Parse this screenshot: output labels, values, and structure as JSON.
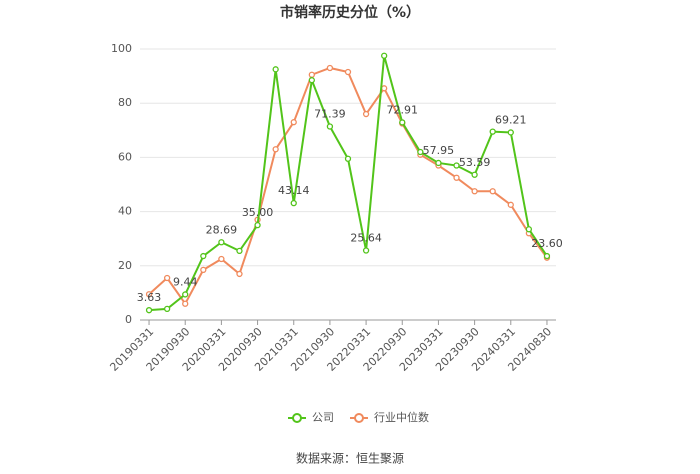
{
  "chart_data": {
    "type": "line",
    "title": "市销率历史分位（%）",
    "categories": [
      "20190331",
      null,
      "20190930",
      null,
      "20200331",
      null,
      "20200930",
      null,
      "20210331",
      null,
      "20210930",
      null,
      "20220331",
      null,
      "20220930",
      null,
      "20230331",
      null,
      "20230930",
      null,
      "20240331",
      null,
      "20240830"
    ],
    "series": [
      {
        "name": "公司",
        "color": "#52c41a",
        "values": [
          3.63,
          4.1,
          9.44,
          23.6,
          28.69,
          25.5,
          35.0,
          92.5,
          43.14,
          88.5,
          71.39,
          59.5,
          25.64,
          97.5,
          72.91,
          62,
          57.95,
          57,
          53.59,
          69.5,
          69.21,
          33.5,
          23.6
        ],
        "value_labels": [
          "3.63",
          null,
          "9.44",
          null,
          "28.69",
          null,
          "35.00",
          null,
          "43.14",
          null,
          "71.39",
          null,
          "25.64",
          null,
          "72.91",
          null,
          "57.95",
          null,
          "53.59",
          null,
          "69.21",
          null,
          "23.60"
        ]
      },
      {
        "name": "行业中位数",
        "color": "#f08a5d",
        "values": [
          9.5,
          15.5,
          6,
          18.5,
          22.5,
          17,
          37,
          63,
          73,
          90.5,
          93,
          91.5,
          76,
          85.5,
          72.5,
          61,
          57,
          52.5,
          47.5,
          47.5,
          42.5,
          32,
          23
        ]
      }
    ],
    "ylim": [
      0,
      100
    ],
    "yticks": [
      0,
      20,
      40,
      60,
      80,
      100
    ],
    "grid": true,
    "source": "数据来源：恒生聚源"
  }
}
